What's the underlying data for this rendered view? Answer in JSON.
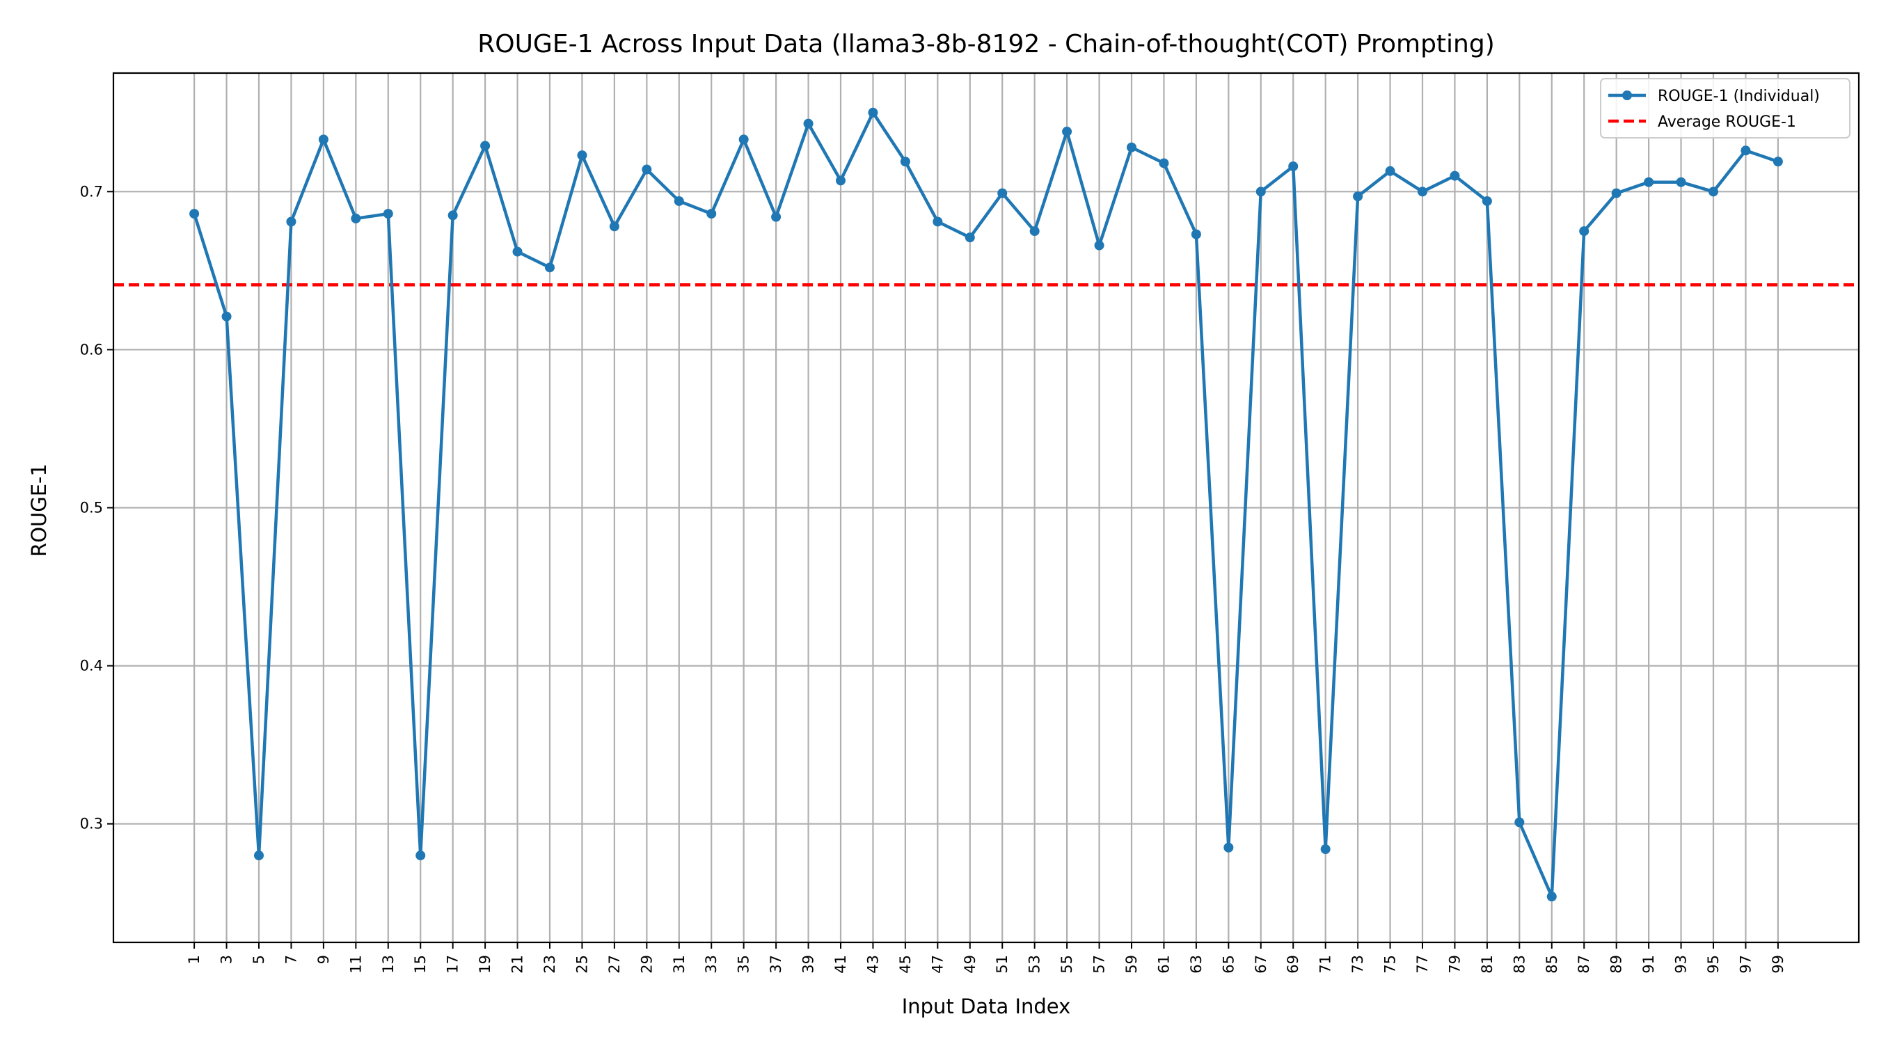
{
  "chart_data": {
    "type": "line",
    "title": "ROUGE-1 Across Input Data (llama3-8b-8192 - Chain-of-thought(COT) Prompting)",
    "xlabel": "Input Data Index",
    "ylabel": "ROUGE-1",
    "x": [
      1,
      3,
      5,
      7,
      9,
      11,
      13,
      15,
      17,
      19,
      21,
      23,
      25,
      27,
      29,
      31,
      33,
      35,
      37,
      39,
      41,
      43,
      45,
      47,
      49,
      51,
      53,
      55,
      57,
      59,
      61,
      63,
      65,
      67,
      69,
      71,
      73,
      75,
      77,
      79,
      81,
      83,
      85,
      87,
      89,
      91,
      93,
      95,
      97,
      99
    ],
    "xticks": [
      "1",
      "3",
      "5",
      "7",
      "9",
      "11",
      "13",
      "15",
      "17",
      "19",
      "21",
      "23",
      "25",
      "27",
      "29",
      "31",
      "33",
      "35",
      "37",
      "39",
      "41",
      "43",
      "45",
      "47",
      "49",
      "51",
      "53",
      "55",
      "57",
      "59",
      "61",
      "63",
      "65",
      "67",
      "69",
      "71",
      "73",
      "75",
      "77",
      "79",
      "81",
      "83",
      "85",
      "87",
      "89",
      "91",
      "93",
      "95",
      "97",
      "99"
    ],
    "yticks": [
      "0.3",
      "0.4",
      "0.5",
      "0.6",
      "0.7"
    ],
    "ytick_values": [
      0.3,
      0.4,
      0.5,
      0.6,
      0.7
    ],
    "xlim": [
      -4,
      104
    ],
    "ylim": [
      0.225,
      0.775
    ],
    "grid": true,
    "legend_position": "top-right",
    "series": [
      {
        "name": "ROUGE-1 (Individual)",
        "color": "#1f77b4",
        "style": "solid-with-markers",
        "values": [
          0.686,
          0.621,
          0.28,
          0.681,
          0.733,
          0.683,
          0.686,
          0.28,
          0.685,
          0.729,
          0.662,
          0.652,
          0.723,
          0.678,
          0.714,
          0.694,
          0.686,
          0.733,
          0.684,
          0.743,
          0.707,
          0.75,
          0.719,
          0.681,
          0.671,
          0.699,
          0.675,
          0.738,
          0.666,
          0.728,
          0.718,
          0.673,
          0.285,
          0.7,
          0.716,
          0.284,
          0.697,
          0.713,
          0.7,
          0.71,
          0.694,
          0.301,
          0.254,
          0.675,
          0.699,
          0.706,
          0.706,
          0.7,
          0.726,
          0.719
        ]
      },
      {
        "name": "Average ROUGE-1",
        "color": "#ff0000",
        "style": "dashed",
        "value": 0.641
      }
    ]
  }
}
